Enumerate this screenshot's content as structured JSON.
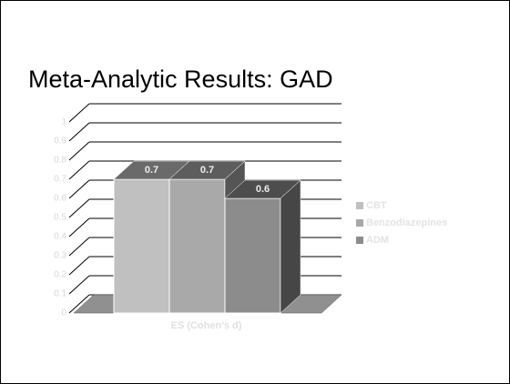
{
  "chart_data": {
    "type": "bar3d",
    "title": "Meta-Analytic Results:  GAD",
    "categories": [
      "ES (Cohen's d)"
    ],
    "series": [
      {
        "name": "CBT",
        "color": "#c0c0c0",
        "values": [
          0.7
        ]
      },
      {
        "name": "Benzodiazepines",
        "color": "#a9a9a9",
        "values": [
          0.7
        ]
      },
      {
        "name": "ADM",
        "color": "#8c8c8c",
        "values": [
          0.6
        ]
      }
    ],
    "ylim": [
      0,
      1
    ],
    "yticks": [
      0,
      0.1,
      0.2,
      0.3,
      0.4,
      0.5,
      0.6,
      0.7,
      0.8,
      0.9,
      1
    ],
    "grid": true,
    "legend": "right"
  }
}
